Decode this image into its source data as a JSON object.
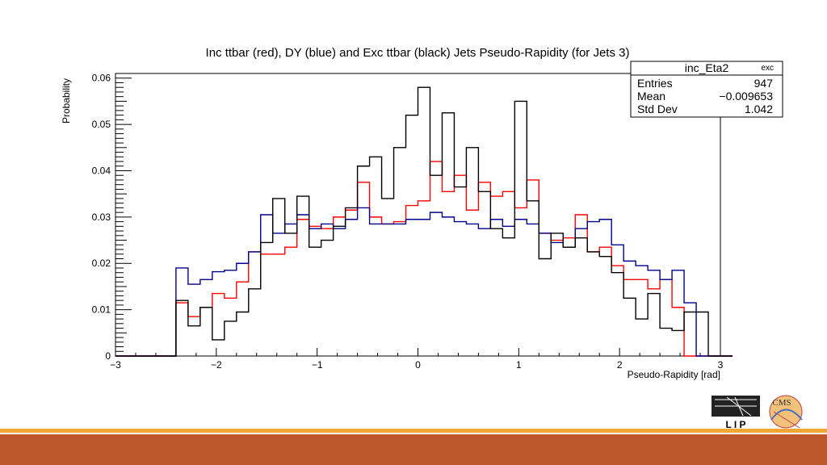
{
  "chart_data": {
    "type": "histogram",
    "title": "Inc ttbar (red), DY (blue) and Exc ttbar (black) Jets Pseudo-Rapidity (for Jets 3)",
    "xlabel": "Pseudo-Rapidity [rad]",
    "ylabel": "Probability",
    "xlim": [
      -3,
      3
    ],
    "ylim": [
      0,
      0.061
    ],
    "x_ticks": [
      "−3",
      "−2",
      "−1",
      "0",
      "1",
      "2",
      "3"
    ],
    "y_ticks": [
      "0",
      "0.01",
      "0.02",
      "0.03",
      "0.04",
      "0.05",
      "0.06"
    ],
    "bin_edges_start": -3,
    "bin_width": 0.12,
    "series": [
      {
        "color": "#ff0000",
        "values": [
          0,
          0,
          0,
          0,
          0,
          0.0115,
          0.0085,
          0.0105,
          0.0135,
          0.0125,
          0.016,
          0.0225,
          0.022,
          0.022,
          0.0235,
          0.0295,
          0.028,
          0.0275,
          0.03,
          0.0315,
          0.0375,
          0.03,
          0.0285,
          0.029,
          0.0325,
          0.0335,
          0.042,
          0.0355,
          0.039,
          0.0315,
          0.0375,
          0.0345,
          0.0355,
          0.032,
          0.038,
          0.0265,
          0.025,
          0.0255,
          0.0305,
          0.0225,
          0.0235,
          0.0195,
          0.0165,
          0.0165,
          0.0145,
          0.0165,
          0.0105,
          0,
          0,
          0,
          0
        ]
      },
      {
        "color": "#00008b",
        "values": [
          0,
          0,
          0,
          0,
          0,
          0.019,
          0.0155,
          0.0165,
          0.0182,
          0.0185,
          0.02,
          0.0225,
          0.0305,
          0.0265,
          0.0285,
          0.0305,
          0.0275,
          0.0285,
          0.0275,
          0.0295,
          0.032,
          0.0285,
          0.0285,
          0.0285,
          0.0295,
          0.0295,
          0.031,
          0.03,
          0.029,
          0.0285,
          0.0275,
          0.0295,
          0.028,
          0.0295,
          0.0285,
          0.0265,
          0.0245,
          0.0235,
          0.0275,
          0.029,
          0.0295,
          0.024,
          0.0205,
          0.0195,
          0.0185,
          0.0165,
          0.0185,
          0.0115,
          0,
          0,
          0
        ]
      },
      {
        "color": "#000000",
        "values": [
          0,
          0,
          0,
          0,
          0,
          0.012,
          0.0065,
          0.0105,
          0.0035,
          0.0075,
          0.0095,
          0.0145,
          0.0245,
          0.034,
          0.0265,
          0.0345,
          0.0235,
          0.025,
          0.028,
          0.032,
          0.041,
          0.043,
          0.034,
          0.045,
          0.052,
          0.058,
          0.039,
          0.0525,
          0.0365,
          0.045,
          0.0355,
          0.0275,
          0.0255,
          0.055,
          0.0335,
          0.021,
          0.0265,
          0.0235,
          0.0255,
          0.0225,
          0.0215,
          0.018,
          0.0125,
          0.008,
          0.0135,
          0.006,
          0.0055,
          0.0095,
          0.0095,
          0,
          0
        ]
      }
    ]
  },
  "stats_box": {
    "name": "inc_Eta2",
    "tag": "exc",
    "rows": [
      {
        "label": "Entries",
        "value": "947"
      },
      {
        "label": "Mean",
        "value": "−0.009653"
      },
      {
        "label": "Std Dev",
        "value": "1.042"
      }
    ]
  },
  "logos": {
    "lip_text": "L I P",
    "cms_text": "CMS"
  }
}
